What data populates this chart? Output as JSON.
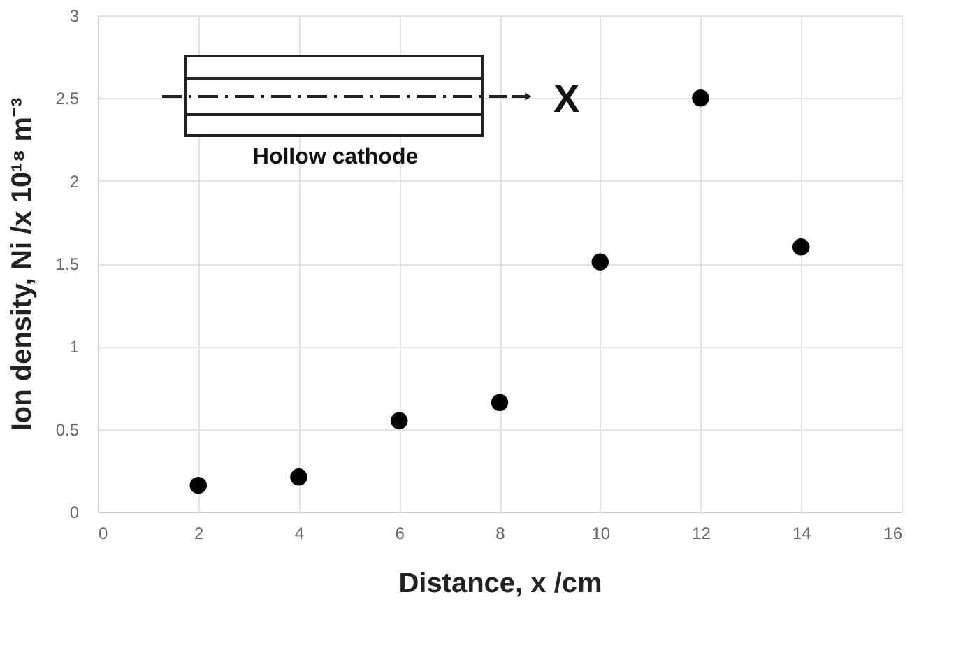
{
  "chart_data": {
    "type": "scatter",
    "xlabel": "Distance, x /cm",
    "ylabel": "Ion density, Ni /x 10¹⁸ m⁻³",
    "x": [
      2,
      4,
      6,
      8,
      10,
      12,
      14
    ],
    "series": [
      {
        "color": "#000000",
        "values": [
          0.16,
          0.21,
          0.55,
          0.66,
          1.51,
          2.5,
          1.6
        ]
      }
    ],
    "xlim": [
      0,
      16
    ],
    "xticks": [
      0,
      2,
      4,
      6,
      8,
      10,
      12,
      14,
      16
    ],
    "ylim": [
      0,
      3
    ],
    "yticks": [
      0,
      0.5,
      1,
      1.5,
      2,
      2.5,
      3
    ],
    "grid": true,
    "marker": "circle",
    "annotations": [
      "Hollow cathode",
      "X"
    ]
  }
}
